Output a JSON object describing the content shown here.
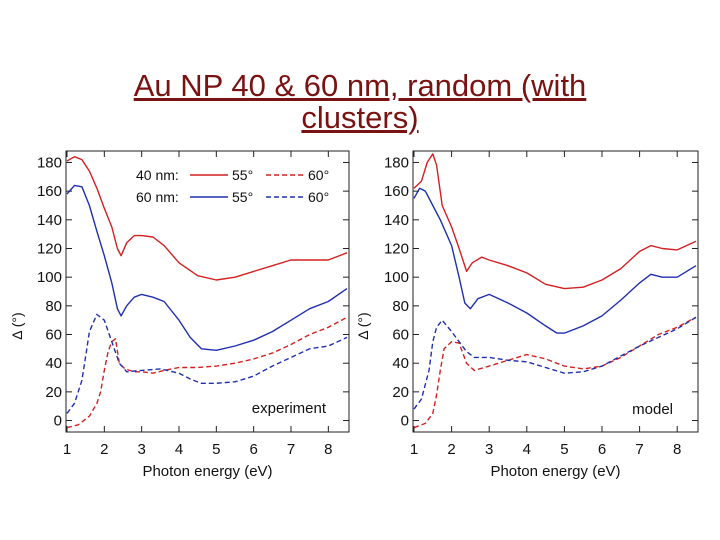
{
  "slide": {
    "title_line1": "Au NP 40 & 60 nm, random (with",
    "title_line2": "clusters)"
  },
  "colors": {
    "red": "#d42020",
    "blue": "#1f2fb0",
    "title": "#7a1212"
  },
  "chart_data": [
    {
      "type": "line",
      "panel": "experiment",
      "annotation": "experiment",
      "xlabel": "Photon energy (eV)",
      "ylabel": "Δ (°)",
      "xlim": [
        1,
        8.5
      ],
      "ylim": [
        -8,
        188
      ],
      "xticks": [
        1,
        2,
        3,
        4,
        5,
        6,
        7,
        8
      ],
      "yticks": [
        0,
        20,
        40,
        60,
        80,
        100,
        120,
        140,
        160,
        180
      ],
      "legend": {
        "rows": [
          {
            "label": "40 nm:",
            "a55": "55°",
            "a60": "60°",
            "color": "red"
          },
          {
            "label": "60 nm:",
            "a55": "55°",
            "a60": "60°",
            "color": "blue"
          }
        ]
      },
      "series": [
        {
          "name": "40 nm: 55°",
          "color": "red",
          "dash": false,
          "x": [
            1,
            1.2,
            1.4,
            1.6,
            1.8,
            2.0,
            2.2,
            2.35,
            2.45,
            2.6,
            2.8,
            3.0,
            3.3,
            3.6,
            4.0,
            4.5,
            5.0,
            5.5,
            6.0,
            6.5,
            7.0,
            7.5,
            8.0,
            8.5
          ],
          "y": [
            181,
            184,
            182,
            174,
            162,
            148,
            135,
            120,
            115,
            124,
            129,
            129,
            128,
            122,
            110,
            101,
            98,
            100,
            104,
            108,
            112,
            112,
            112,
            117
          ]
        },
        {
          "name": "40 nm: 60°",
          "color": "red",
          "dash": true,
          "x": [
            1,
            1.3,
            1.6,
            1.8,
            1.9,
            2.0,
            2.1,
            2.2,
            2.3,
            2.4,
            2.55,
            2.8,
            3.0,
            3.3,
            3.6,
            4.0,
            4.5,
            5.0,
            5.5,
            6.0,
            6.5,
            7.0,
            7.5,
            8.0,
            8.5
          ],
          "y": [
            -5,
            -3,
            3,
            12,
            20,
            35,
            48,
            55,
            57,
            40,
            36,
            34,
            34,
            33,
            35,
            37,
            37,
            38,
            40,
            43,
            47,
            53,
            60,
            65,
            72
          ]
        },
        {
          "name": "60 nm: 55°",
          "color": "blue",
          "dash": false,
          "x": [
            1,
            1.2,
            1.4,
            1.6,
            1.8,
            2.0,
            2.2,
            2.35,
            2.45,
            2.6,
            2.8,
            3.0,
            3.3,
            3.6,
            4.0,
            4.3,
            4.6,
            5.0,
            5.5,
            6.0,
            6.5,
            7.0,
            7.5,
            8.0,
            8.5
          ],
          "y": [
            158,
            164,
            163,
            150,
            132,
            115,
            96,
            78,
            73,
            80,
            86,
            88,
            86,
            83,
            70,
            58,
            50,
            49,
            52,
            56,
            62,
            70,
            78,
            83,
            92
          ]
        },
        {
          "name": "60 nm: 60°",
          "color": "blue",
          "dash": true,
          "x": [
            1,
            1.2,
            1.4,
            1.5,
            1.6,
            1.8,
            2.0,
            2.2,
            2.4,
            2.6,
            3.0,
            3.5,
            4.0,
            4.3,
            4.6,
            5.0,
            5.5,
            6.0,
            6.5,
            7.0,
            7.5,
            8.0,
            8.5
          ],
          "y": [
            5,
            12,
            28,
            45,
            62,
            74,
            70,
            55,
            40,
            34,
            35,
            36,
            33,
            29,
            26,
            26,
            27,
            31,
            38,
            44,
            50,
            52,
            58
          ]
        }
      ]
    },
    {
      "type": "line",
      "panel": "model",
      "annotation": "model",
      "xlabel": "Photon energy (eV)",
      "ylabel": "Δ (°)",
      "xlim": [
        1,
        8.5
      ],
      "ylim": [
        -8,
        188
      ],
      "xticks": [
        1,
        2,
        3,
        4,
        5,
        6,
        7,
        8
      ],
      "yticks": [
        0,
        20,
        40,
        60,
        80,
        100,
        120,
        140,
        160,
        180
      ],
      "series": [
        {
          "name": "40 nm: 55°",
          "color": "red",
          "dash": false,
          "x": [
            1,
            1.2,
            1.35,
            1.5,
            1.6,
            1.75,
            2.0,
            2.2,
            2.4,
            2.55,
            2.8,
            3.0,
            3.5,
            4.0,
            4.5,
            5.0,
            5.5,
            6.0,
            6.5,
            7.0,
            7.3,
            7.6,
            8.0,
            8.5
          ],
          "y": [
            162,
            167,
            180,
            186,
            178,
            150,
            135,
            120,
            104,
            110,
            114,
            112,
            108,
            103,
            95,
            92,
            93,
            98,
            106,
            118,
            122,
            120,
            119,
            125
          ]
        },
        {
          "name": "40 nm: 60°",
          "color": "red",
          "dash": true,
          "x": [
            1,
            1.3,
            1.5,
            1.6,
            1.7,
            1.8,
            2.0,
            2.2,
            2.4,
            2.6,
            3.0,
            3.5,
            4.0,
            4.5,
            5.0,
            5.5,
            6.0,
            6.5,
            7.0,
            7.5,
            8.0,
            8.5
          ],
          "y": [
            -5,
            -2,
            5,
            18,
            35,
            50,
            55,
            54,
            40,
            35,
            38,
            42,
            46,
            43,
            38,
            36,
            38,
            44,
            52,
            60,
            65,
            72
          ]
        },
        {
          "name": "60 nm: 55°",
          "color": "blue",
          "dash": false,
          "x": [
            1,
            1.15,
            1.3,
            1.5,
            1.7,
            2.0,
            2.2,
            2.35,
            2.5,
            2.7,
            3.0,
            3.5,
            4.0,
            4.5,
            4.8,
            5.0,
            5.5,
            6.0,
            6.5,
            7.0,
            7.3,
            7.6,
            8.0,
            8.5
          ],
          "y": [
            155,
            162,
            160,
            150,
            140,
            122,
            100,
            82,
            78,
            85,
            88,
            82,
            75,
            66,
            61,
            61,
            66,
            73,
            84,
            96,
            102,
            100,
            100,
            108
          ]
        },
        {
          "name": "60 nm: 60°",
          "color": "blue",
          "dash": true,
          "x": [
            1,
            1.2,
            1.4,
            1.5,
            1.6,
            1.75,
            2.0,
            2.2,
            2.4,
            2.6,
            3.0,
            3.5,
            4.0,
            4.5,
            5.0,
            5.5,
            6.0,
            6.5,
            7.0,
            7.5,
            8.0,
            8.5
          ],
          "y": [
            8,
            15,
            35,
            55,
            65,
            70,
            62,
            55,
            48,
            44,
            44,
            42,
            41,
            37,
            33,
            34,
            38,
            45,
            52,
            58,
            64,
            72
          ]
        }
      ]
    }
  ]
}
